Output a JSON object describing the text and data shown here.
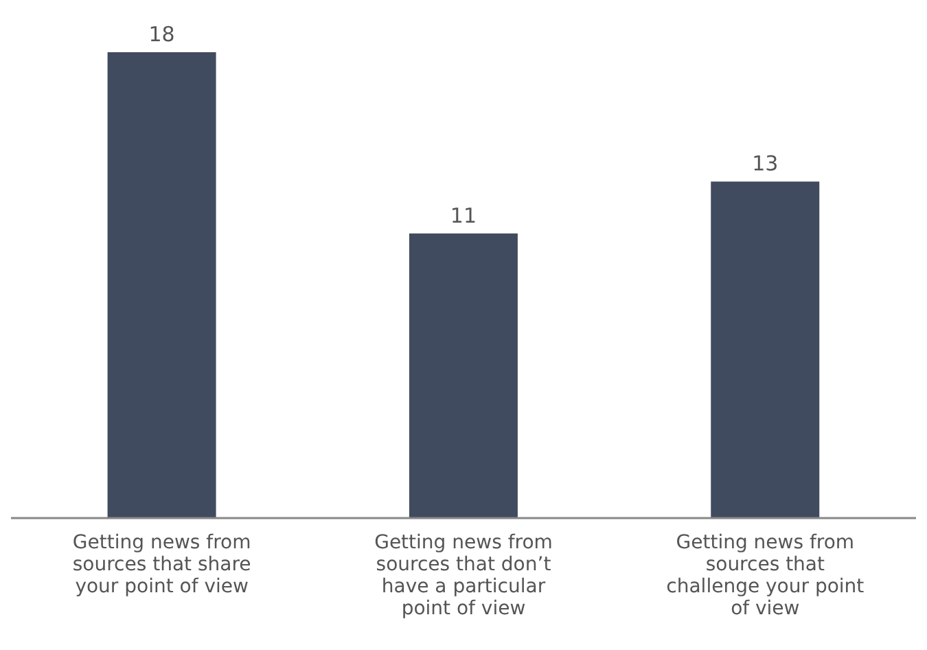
{
  "chart_data": {
    "type": "bar",
    "categories": [
      "Getting news from sources that share your point of view",
      "Getting news from sources that don’t have a particular point of view",
      "Getting news from sources that challenge your point of view"
    ],
    "values": [
      18,
      11,
      13
    ],
    "color": "#414b5f",
    "data_labels": true,
    "grid": false,
    "legend": false
  }
}
